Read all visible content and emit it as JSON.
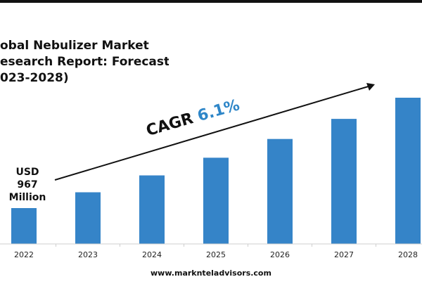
{
  "title_lines": [
    "obal Nebulizer Market",
    "esearch Report: Forecast",
    "023-2028)"
  ],
  "start_label": {
    "currency": "USD",
    "amount": "967",
    "unit": "Million"
  },
  "cagr": {
    "label": "CAGR",
    "value": "6.1%"
  },
  "footer": {
    "url": "www.marknteladvisors.com"
  },
  "colors": {
    "bar": "#3584c8",
    "accent": "#2e86c8"
  },
  "chart_data": {
    "type": "bar",
    "categories": [
      "2022",
      "2023",
      "2024",
      "2025",
      "2026",
      "2027",
      "2028"
    ],
    "values": [
      967,
      1026,
      1089,
      1155,
      1225,
      1300,
      1379
    ],
    "title": "obal Nebulizer Market esearch Report: Forecast 023-2028)",
    "xlabel": "",
    "ylabel": "",
    "annotations": [
      "USD 967 Million",
      "CAGR 6.1%"
    ],
    "grid": false,
    "legend": "none"
  }
}
